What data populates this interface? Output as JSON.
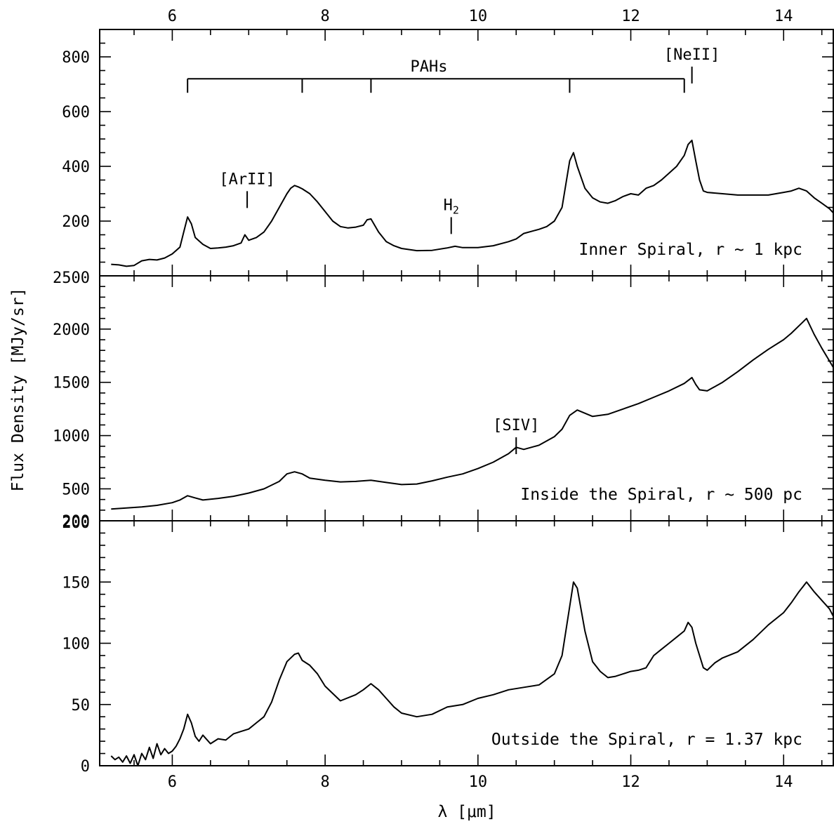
{
  "chart_data": {
    "type": "line",
    "x_axis": {
      "label": "λ [μm]",
      "range": [
        5.05,
        14.65
      ],
      "major_ticks": [
        6,
        8,
        10,
        12,
        14
      ],
      "major_tick_labels": [
        "6",
        "8",
        "10",
        "12",
        "14"
      ],
      "minor_tick_step": 0.5,
      "ticks_on_top": true
    },
    "y_axis_label": "Flux Density [MJy/sr]",
    "panels": [
      {
        "label": "Inner Spiral, r ~ 1 kpc",
        "y_range": [
          0,
          900
        ],
        "y_ticks": [
          200,
          400,
          600,
          800
        ],
        "y_tick_labels": [
          "200",
          "400",
          "600",
          "800"
        ],
        "y_minor_step": 50,
        "series": [
          {
            "x": [
              5.2,
              5.3,
              5.4,
              5.5,
              5.6,
              5.7,
              5.8,
              5.9,
              6.0,
              6.1,
              6.15,
              6.2,
              6.25,
              6.3,
              6.4,
              6.5,
              6.6,
              6.7,
              6.8,
              6.9,
              6.95,
              7.0,
              7.1,
              7.2,
              7.3,
              7.4,
              7.5,
              7.55,
              7.6,
              7.65,
              7.7,
              7.8,
              7.9,
              8.0,
              8.1,
              8.2,
              8.3,
              8.4,
              8.5,
              8.55,
              8.6,
              8.7,
              8.8,
              8.9,
              9.0,
              9.2,
              9.4,
              9.6,
              9.7,
              9.8,
              10.0,
              10.2,
              10.4,
              10.5,
              10.6,
              10.8,
              10.9,
              11.0,
              11.1,
              11.2,
              11.25,
              11.3,
              11.4,
              11.5,
              11.6,
              11.7,
              11.8,
              11.9,
              12.0,
              12.1,
              12.2,
              12.3,
              12.4,
              12.5,
              12.6,
              12.7,
              12.75,
              12.8,
              12.85,
              12.9,
              12.95,
              13.0,
              13.2,
              13.4,
              13.6,
              13.8,
              14.0,
              14.1,
              14.2,
              14.3,
              14.4,
              14.5,
              14.6,
              14.65
            ],
            "y": [
              42,
              40,
              35,
              38,
              55,
              60,
              58,
              65,
              80,
              105,
              160,
              215,
              190,
              140,
              115,
              100,
              102,
              105,
              110,
              120,
              150,
              130,
              140,
              160,
              200,
              250,
              300,
              320,
              330,
              325,
              318,
              300,
              270,
              235,
              200,
              180,
              175,
              178,
              185,
              205,
              208,
              160,
              125,
              110,
              100,
              92,
              93,
              102,
              108,
              103,
              103,
              110,
              125,
              135,
              155,
              170,
              180,
              200,
              250,
              420,
              450,
              400,
              320,
              285,
              270,
              265,
              275,
              290,
              300,
              295,
              320,
              330,
              350,
              375,
              400,
              440,
              480,
              495,
              420,
              350,
              310,
              305,
              300,
              295,
              295,
              295,
              305,
              310,
              320,
              310,
              285,
              265,
              245,
              230
            ]
          }
        ],
        "annotations": [
          {
            "text": "PAHs",
            "type": "bracket",
            "x_ticks": [
              6.2,
              7.7,
              8.6,
              11.2,
              12.7
            ],
            "y": 720
          },
          {
            "text": "[NeII]",
            "type": "line_marker",
            "x": 12.8,
            "y": 790
          },
          {
            "text": "[ArII]",
            "type": "line_marker",
            "x": 6.98,
            "y": 335
          },
          {
            "text": "H2",
            "type": "line_marker",
            "x": 9.65,
            "y": 240
          }
        ]
      },
      {
        "label": "Inside the Spiral, r ~ 500 pc",
        "y_range": [
          200,
          2500
        ],
        "y_ticks": [
          500,
          1000,
          1500,
          2000
        ],
        "y_tick_labels": [
          "500",
          "1000",
          "1500",
          "2000"
        ],
        "y_extra_labels": [
          "200",
          "2500"
        ],
        "y_minor_step": 100,
        "series": [
          {
            "x": [
              5.2,
              5.4,
              5.6,
              5.8,
              6.0,
              6.1,
              6.2,
              6.3,
              6.4,
              6.6,
              6.8,
              7.0,
              7.2,
              7.4,
              7.5,
              7.6,
              7.7,
              7.8,
              8.0,
              8.2,
              8.4,
              8.6,
              8.8,
              9.0,
              9.2,
              9.4,
              9.6,
              9.8,
              10.0,
              10.2,
              10.4,
              10.5,
              10.6,
              10.8,
              11.0,
              11.1,
              11.2,
              11.3,
              11.5,
              11.7,
              11.9,
              12.1,
              12.3,
              12.5,
              12.7,
              12.8,
              12.85,
              12.9,
              13.0,
              13.2,
              13.4,
              13.6,
              13.8,
              14.0,
              14.1,
              14.2,
              14.3,
              14.4,
              14.5,
              14.6,
              14.65
            ],
            "y": [
              310,
              320,
              330,
              345,
              370,
              395,
              435,
              415,
              395,
              410,
              430,
              460,
              500,
              570,
              640,
              660,
              640,
              600,
              580,
              565,
              570,
              580,
              560,
              540,
              545,
              575,
              610,
              640,
              690,
              750,
              830,
              890,
              870,
              910,
              990,
              1060,
              1190,
              1240,
              1180,
              1200,
              1250,
              1300,
              1360,
              1420,
              1490,
              1545,
              1480,
              1430,
              1420,
              1500,
              1600,
              1710,
              1810,
              1900,
              1960,
              2030,
              2100,
              1950,
              1820,
              1700,
              1640
            ]
          }
        ],
        "annotations": [
          {
            "text": "[SIV]",
            "type": "line_marker",
            "x": 10.5,
            "y": 1050
          }
        ]
      },
      {
        "label": "Outside the Spiral, r = 1.37 kpc",
        "y_range": [
          0,
          200
        ],
        "y_ticks": [
          0,
          50,
          100,
          150
        ],
        "y_tick_labels": [
          "0",
          "50",
          "100",
          "150"
        ],
        "y_extra_labels": [
          "200"
        ],
        "y_minor_step": 10,
        "series": [
          {
            "x": [
              5.2,
              5.25,
              5.3,
              5.35,
              5.4,
              5.45,
              5.5,
              5.55,
              5.6,
              5.65,
              5.7,
              5.75,
              5.8,
              5.85,
              5.9,
              5.95,
              6.0,
              6.05,
              6.1,
              6.15,
              6.2,
              6.25,
              6.3,
              6.35,
              6.4,
              6.5,
              6.6,
              6.7,
              6.8,
              6.9,
              7.0,
              7.1,
              7.2,
              7.3,
              7.4,
              7.5,
              7.6,
              7.65,
              7.7,
              7.8,
              7.9,
              8.0,
              8.2,
              8.4,
              8.5,
              8.6,
              8.7,
              8.8,
              8.9,
              9.0,
              9.2,
              9.4,
              9.6,
              9.8,
              10.0,
              10.2,
              10.4,
              10.6,
              10.8,
              11.0,
              11.1,
              11.2,
              11.25,
              11.3,
              11.4,
              11.5,
              11.6,
              11.7,
              11.8,
              11.9,
              12.0,
              12.1,
              12.2,
              12.3,
              12.4,
              12.5,
              12.6,
              12.7,
              12.75,
              12.8,
              12.85,
              12.9,
              12.95,
              13.0,
              13.1,
              13.2,
              13.4,
              13.6,
              13.8,
              14.0,
              14.1,
              14.2,
              14.25,
              14.3,
              14.4,
              14.5,
              14.6,
              14.65
            ],
            "y": [
              8,
              5,
              7,
              3,
              8,
              2,
              9,
              0,
              10,
              5,
              15,
              6,
              18,
              9,
              14,
              10,
              12,
              16,
              22,
              30,
              42,
              35,
              24,
              20,
              25,
              18,
              22,
              21,
              26,
              28,
              30,
              35,
              40,
              52,
              70,
              85,
              91,
              92,
              86,
              82,
              75,
              65,
              53,
              58,
              62,
              67,
              62,
              55,
              48,
              43,
              40,
              42,
              48,
              50,
              55,
              58,
              62,
              64,
              66,
              75,
              90,
              130,
              150,
              145,
              110,
              85,
              77,
              72,
              73,
              75,
              77,
              78,
              80,
              90,
              95,
              100,
              105,
              110,
              117,
              113,
              100,
              90,
              80,
              78,
              84,
              88,
              93,
              103,
              115,
              125,
              133,
              142,
              146,
              150,
              142,
              135,
              128,
              122
            ]
          }
        ],
        "annotations": []
      }
    ]
  }
}
